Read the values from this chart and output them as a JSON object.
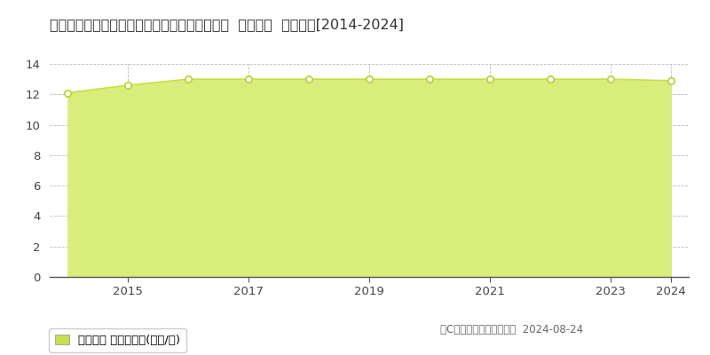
{
  "title": "福島県いわき市勿来町窪田町通１丁目４３番３  地価公示  地価推移[2014-2024]",
  "years": [
    2014,
    2015,
    2016,
    2017,
    2018,
    2019,
    2020,
    2021,
    2022,
    2023,
    2024
  ],
  "values": [
    12.1,
    12.6,
    13.0,
    13.0,
    13.0,
    13.0,
    13.0,
    13.0,
    13.0,
    13.0,
    12.9
  ],
  "line_color": "#c8e04a",
  "fill_color": "#d8ed7a",
  "fill_alpha": 1.0,
  "marker_color": "#ffffff",
  "marker_edge_color": "#b8d030",
  "ylim": [
    0,
    14
  ],
  "yticks": [
    0,
    2,
    4,
    6,
    8,
    10,
    12,
    14
  ],
  "xticks": [
    2015,
    2017,
    2019,
    2021,
    2023,
    2024
  ],
  "grid_color": "#bbbbbb",
  "background_color": "#ffffff",
  "plot_bg_color": "#ffffff",
  "legend_label": "地価公示 平均坪単価(万円/坪)",
  "legend_marker_color": "#c8e04a",
  "copyright_text": "（C）土地価格ドットコム  2024-08-24",
  "title_fontsize": 11.5,
  "tick_fontsize": 9.5,
  "legend_fontsize": 9.5,
  "copyright_fontsize": 8.5
}
